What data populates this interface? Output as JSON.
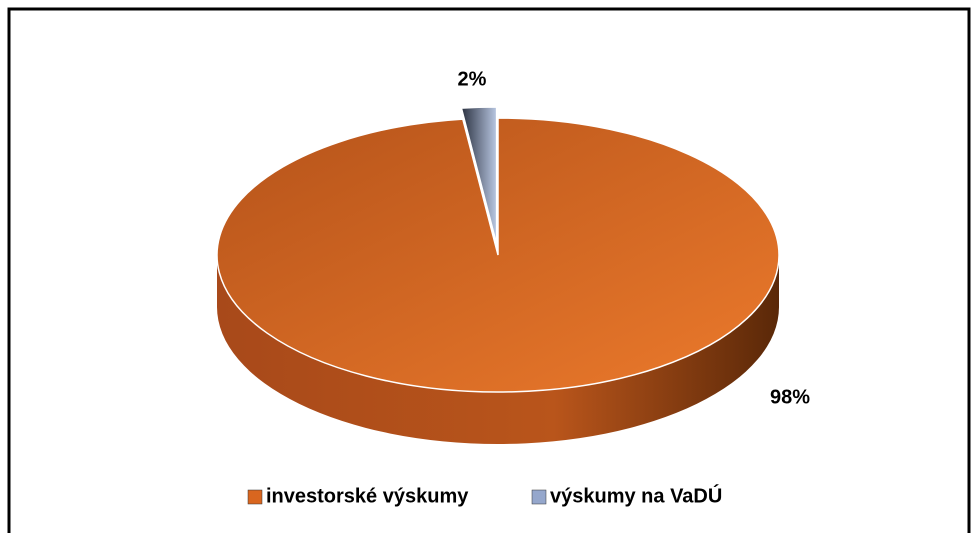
{
  "chart_data": {
    "type": "pie",
    "categories": [
      "investorské výskumy",
      "výskumy na VaDÚ"
    ],
    "values": [
      98,
      2
    ],
    "value_labels": [
      "98%",
      "2%"
    ],
    "colors": [
      "#d9661f",
      "#95a7cc"
    ],
    "legend": "bottom"
  }
}
